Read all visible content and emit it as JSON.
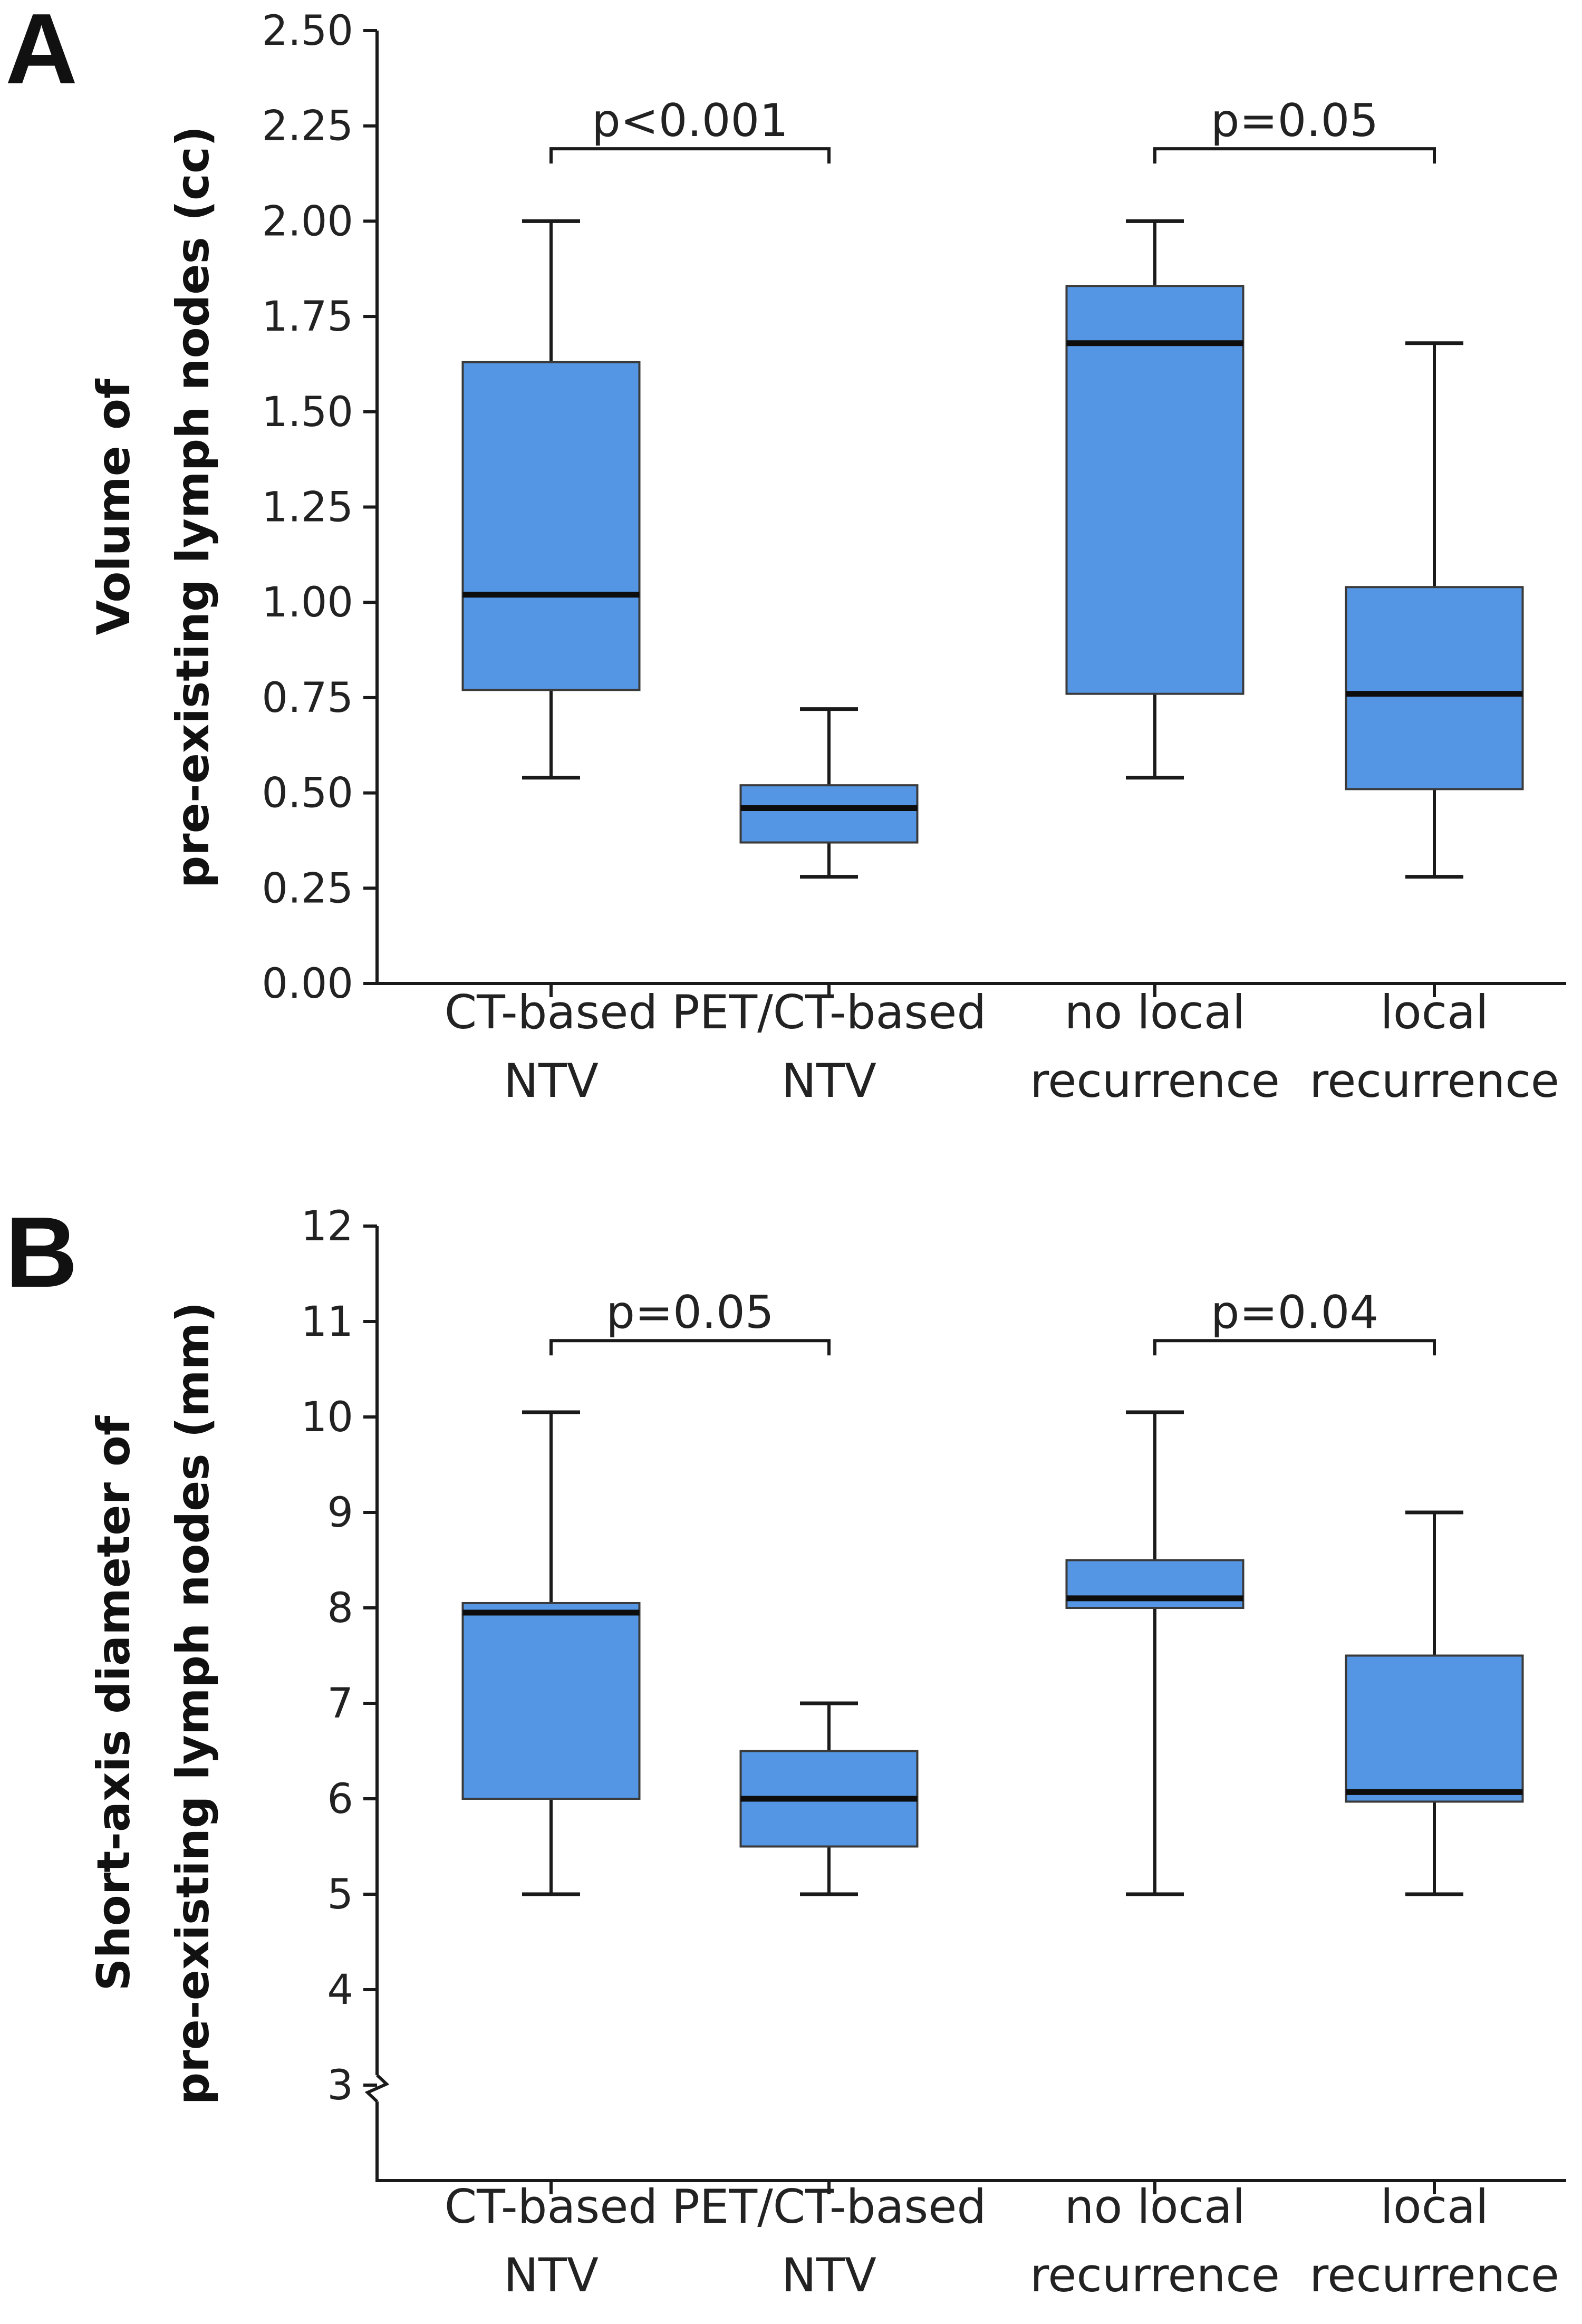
{
  "colors": {
    "box_fill": "#5496e3",
    "axis": "#1a1a1a",
    "text": "#222222"
  },
  "chart_data": [
    {
      "panel": "A",
      "type": "boxplot",
      "ylabel": [
        "Volume of",
        "pre-existing lymph nodes (cc)"
      ],
      "ylim": [
        0,
        2.5
      ],
      "yticks": [
        0,
        0.25,
        0.5,
        0.75,
        1.0,
        1.25,
        1.5,
        1.75,
        2.0,
        2.25,
        2.5
      ],
      "ytick_labels": [
        "0.00",
        "0.25",
        "0.50",
        "0.75",
        "1.00",
        "1.25",
        "1.50",
        "1.75",
        "2.00",
        "2.25",
        "2.50"
      ],
      "axis_break": false,
      "categories": [
        [
          "CT-based",
          "NTV"
        ],
        [
          "PET/CT-based",
          "NTV"
        ],
        [
          "no local",
          "recurrence"
        ],
        [
          "local",
          "recurrence"
        ]
      ],
      "series": [
        {
          "name": "CT-based NTV",
          "min": 0.54,
          "q1": 0.77,
          "median": 1.02,
          "q3": 1.63,
          "max": 2.0
        },
        {
          "name": "PET/CT-based NTV",
          "min": 0.28,
          "q1": 0.37,
          "median": 0.46,
          "q3": 0.52,
          "max": 0.72
        },
        {
          "name": "no local recurrence",
          "min": 0.54,
          "q1": 0.76,
          "median": 1.68,
          "q3": 1.83,
          "max": 2.0
        },
        {
          "name": "local recurrence",
          "min": 0.28,
          "q1": 0.51,
          "median": 0.76,
          "q3": 1.04,
          "max": 1.68
        }
      ],
      "comparisons": [
        {
          "groups": [
            0,
            1
          ],
          "label": "p<0.001",
          "y": 2.19
        },
        {
          "groups": [
            2,
            3
          ],
          "label": "p=0.05",
          "y": 2.19
        }
      ]
    },
    {
      "panel": "B",
      "type": "boxplot",
      "ylabel": [
        "Short-axis diameter of",
        "pre-existing lymph nodes (mm)"
      ],
      "ylim": [
        2,
        12
      ],
      "yticks": [
        3,
        4,
        5,
        6,
        7,
        8,
        9,
        10,
        11,
        12
      ],
      "ytick_labels": [
        "3",
        "4",
        "5",
        "6",
        "7",
        "8",
        "9",
        "10",
        "11",
        "12"
      ],
      "axis_break": true,
      "categories": [
        [
          "CT-based",
          "NTV"
        ],
        [
          "PET/CT-based",
          "NTV"
        ],
        [
          "no local",
          "recurrence"
        ],
        [
          "local",
          "recurrence"
        ]
      ],
      "series": [
        {
          "name": "CT-based NTV",
          "min": 5.0,
          "q1": 6.0,
          "median": 7.95,
          "q3": 8.05,
          "max": 10.05
        },
        {
          "name": "PET/CT-based NTV",
          "min": 5.0,
          "q1": 5.5,
          "median": 6.0,
          "q3": 6.5,
          "max": 7.0
        },
        {
          "name": "no local recurrence",
          "min": 5.0,
          "q1": 8.0,
          "median": 8.1,
          "q3": 8.5,
          "max": 10.05
        },
        {
          "name": "local recurrence",
          "min": 5.0,
          "q1": 5.97,
          "median": 6.07,
          "q3": 7.5,
          "max": 9.0
        }
      ],
      "comparisons": [
        {
          "groups": [
            0,
            1
          ],
          "label": "p=0.05",
          "y": 10.8
        },
        {
          "groups": [
            2,
            3
          ],
          "label": "p=0.04",
          "y": 10.8
        }
      ]
    }
  ]
}
